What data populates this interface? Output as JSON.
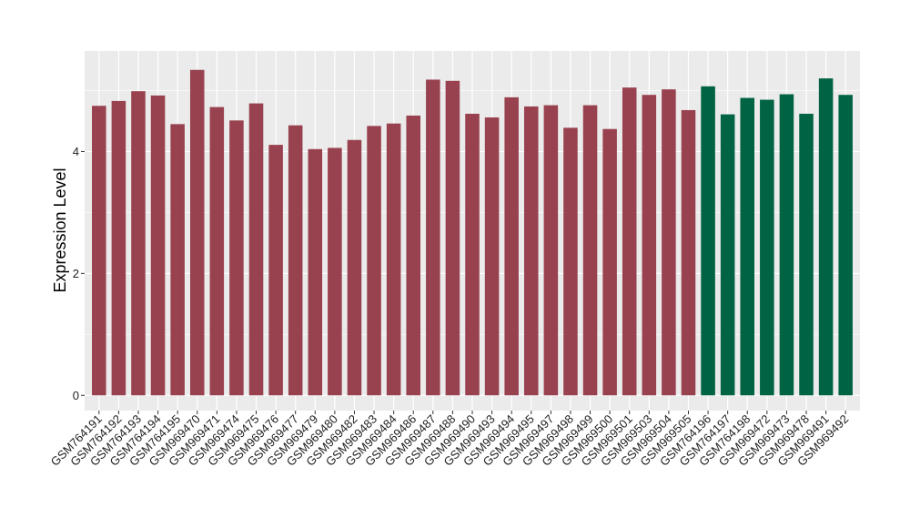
{
  "chart_data": {
    "type": "bar",
    "xlabel": "",
    "ylabel": "Expression Level",
    "ylim": [
      -0.25,
      5.65
    ],
    "yticks": [
      0,
      2,
      4
    ],
    "grid": true,
    "categories": [
      "GSM764191",
      "GSM764192",
      "GSM764193",
      "GSM764194",
      "GSM764195",
      "GSM969470",
      "GSM969471",
      "GSM969474",
      "GSM969475",
      "GSM969476",
      "GSM969477",
      "GSM969479",
      "GSM969480",
      "GSM969482",
      "GSM969483",
      "GSM969484",
      "GSM969486",
      "GSM969487",
      "GSM969488",
      "GSM969490",
      "GSM969493",
      "GSM969494",
      "GSM969495",
      "GSM969497",
      "GSM969498",
      "GSM969499",
      "GSM969500",
      "GSM969501",
      "GSM969503",
      "GSM969504",
      "GSM969505",
      "GSM764196",
      "GSM764197",
      "GSM764198",
      "GSM969472",
      "GSM969473",
      "GSM969478",
      "GSM969491",
      "GSM969492"
    ],
    "values": [
      4.75,
      4.83,
      4.99,
      4.92,
      4.45,
      5.34,
      4.73,
      4.51,
      4.79,
      4.11,
      4.43,
      4.04,
      4.06,
      4.19,
      4.42,
      4.46,
      4.59,
      5.18,
      5.16,
      4.62,
      4.56,
      4.89,
      4.74,
      4.76,
      4.39,
      4.76,
      4.37,
      5.05,
      4.93,
      5.02,
      4.68,
      5.07,
      4.61,
      4.88,
      4.85,
      4.94,
      4.62,
      5.2,
      4.93
    ],
    "groups": [
      "a",
      "a",
      "a",
      "a",
      "a",
      "a",
      "a",
      "a",
      "a",
      "a",
      "a",
      "a",
      "a",
      "a",
      "a",
      "a",
      "a",
      "a",
      "a",
      "a",
      "a",
      "a",
      "a",
      "a",
      "a",
      "a",
      "a",
      "a",
      "a",
      "a",
      "a",
      "b",
      "b",
      "b",
      "b",
      "b",
      "b",
      "b",
      "b"
    ],
    "colors": {
      "a": "#99424f",
      "b": "#006344",
      "panel": "#ebebeb",
      "grid": "#ffffff"
    }
  }
}
